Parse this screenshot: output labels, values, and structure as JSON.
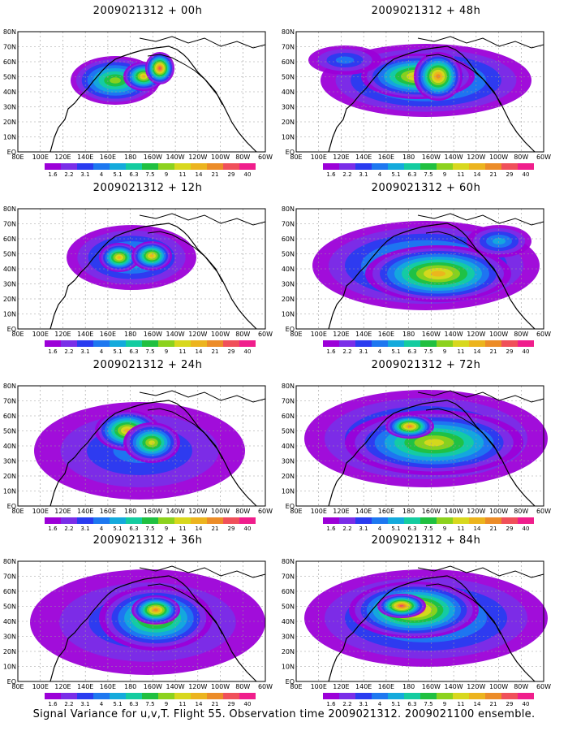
{
  "panels": [
    {
      "title": "2009021312 + 00h"
    },
    {
      "title": "2009021312 + 48h"
    },
    {
      "title": "2009021312 + 12h"
    },
    {
      "title": "2009021312 + 60h"
    },
    {
      "title": "2009021312 + 24h"
    },
    {
      "title": "2009021312 + 72h"
    },
    {
      "title": "2009021312 + 36h"
    },
    {
      "title": "2009021312 + 84h"
    }
  ],
  "x_ticks": [
    "80E",
    "100E",
    "120E",
    "140E",
    "160E",
    "180",
    "160W",
    "140W",
    "120W",
    "100W",
    "80W",
    "60W"
  ],
  "y_ticks": [
    "80N",
    "70N",
    "60N",
    "50N",
    "40N",
    "30N",
    "20N",
    "10N",
    "EQ"
  ],
  "colorbar": {
    "levels": [
      "1.6",
      "2.2",
      "3.1",
      "4",
      "5.1",
      "6.3",
      "7.5",
      "9",
      "11",
      "14",
      "21",
      "29",
      "40"
    ],
    "colors": [
      "#9c00d8",
      "#7a2ee8",
      "#2a3cf0",
      "#1e78f0",
      "#14aadc",
      "#14cca0",
      "#20c040",
      "#8cd21e",
      "#d8d81e",
      "#ecb41e",
      "#ec8c28",
      "#f0505a",
      "#f01e8c"
    ]
  },
  "footer": "Signal Variance for u,v,T. Flight 55. Observation time 2009021312. 2009021100 ensemble."
}
